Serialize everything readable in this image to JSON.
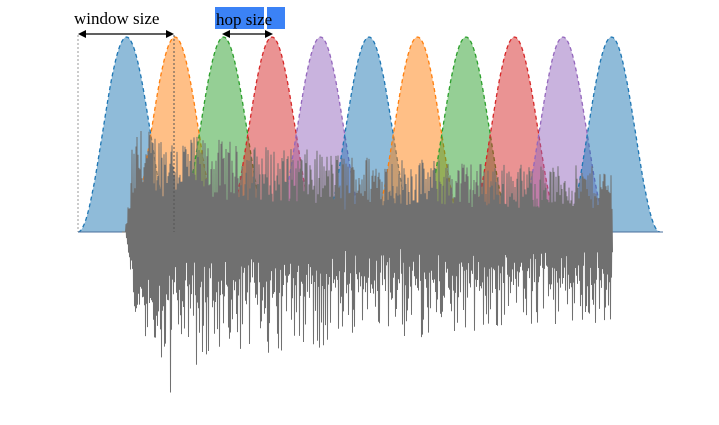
{
  "labels": {
    "window_size": "window size",
    "hop_size": "hop size"
  },
  "colors": {
    "window_palette": [
      "#1f77b4",
      "#ff7f0e",
      "#2ca02c",
      "#d62728",
      "#9467bd"
    ],
    "waveform": "#707070",
    "highlight": "#3b82f6"
  },
  "window_count": 11
}
